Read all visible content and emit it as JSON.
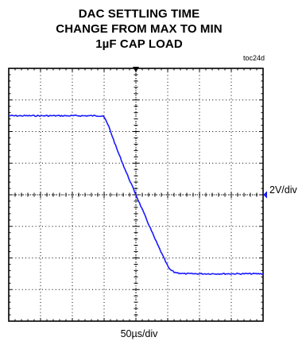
{
  "chart_data": {
    "type": "line",
    "title_lines": [
      "DAC SETTLING TIME",
      "CHANGE FROM MAX TO MIN",
      "1µF CAP LOAD"
    ],
    "figure_id": "toc24d",
    "y_scale": "2V/div",
    "x_scale": "50µs/div",
    "grid": {
      "horizontal_divisions": 10,
      "vertical_divisions": 8,
      "minor_ticks_per_division": 5,
      "style": "dotted"
    },
    "trigger_marker_division": 4,
    "axis_ranges": {
      "x_div": [
        0,
        8
      ],
      "y_div": [
        -4,
        4
      ]
    },
    "series": [
      {
        "color": "#1a1aff",
        "points": [
          [
            0.0,
            2.5
          ],
          [
            2.98,
            2.5
          ],
          [
            3.15,
            2.15
          ],
          [
            3.4,
            1.45
          ],
          [
            3.7,
            0.7
          ],
          [
            4.0,
            0.0
          ],
          [
            4.3,
            -0.7
          ],
          [
            4.6,
            -1.4
          ],
          [
            4.9,
            -2.05
          ],
          [
            5.05,
            -2.35
          ],
          [
            5.2,
            -2.45
          ],
          [
            5.5,
            -2.5
          ],
          [
            8.0,
            -2.5
          ]
        ]
      }
    ]
  }
}
